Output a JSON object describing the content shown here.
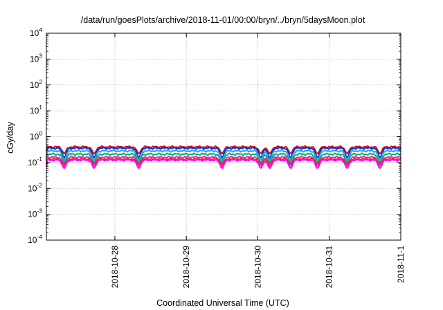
{
  "chart_data": {
    "type": "line",
    "title": "/data/run/goesPlots/archive/2018-11-01/00:00/bryn/../bryn/5daysMoon.plot",
    "xlabel": "Coordinated Universal Time (UTC)",
    "ylabel": "cGy/day",
    "x_range": [
      "2018-10-27T01:00",
      "2018-11-01T00:00"
    ],
    "y_scale": "log",
    "ylim": [
      0.0001,
      10000
    ],
    "grid": true,
    "legend": "none",
    "y_ticks": [
      {
        "value": 0.0001,
        "base": "10",
        "exp": "-4"
      },
      {
        "value": 0.001,
        "base": "10",
        "exp": "-3"
      },
      {
        "value": 0.01,
        "base": "10",
        "exp": "-2"
      },
      {
        "value": 0.1,
        "base": "10",
        "exp": "-1"
      },
      {
        "value": 1,
        "base": "10",
        "exp": "0"
      },
      {
        "value": 10,
        "base": "10",
        "exp": "1"
      },
      {
        "value": 100,
        "base": "10",
        "exp": "2"
      },
      {
        "value": 1000,
        "base": "10",
        "exp": "3"
      },
      {
        "value": 10000,
        "base": "10",
        "exp": "4"
      }
    ],
    "x_ticks": [
      {
        "value": "2018-10-28T00:00",
        "label": "2018-10-28"
      },
      {
        "value": "2018-10-29T00:00",
        "label": "2018-10-29"
      },
      {
        "value": "2018-10-30T00:00",
        "label": "2018-10-30"
      },
      {
        "value": "2018-10-31T00:00",
        "label": "2018-10-31"
      },
      {
        "value": "2018-11-01T00:00",
        "label": "2018-11-1"
      }
    ],
    "dips": [
      "2018-10-27T07:00",
      "2018-10-27T17:00",
      "2018-10-28T08:00",
      "2018-10-29T12:00",
      "2018-10-30T01:00",
      "2018-10-30T04:00",
      "2018-10-30T11:00",
      "2018-10-30T20:00",
      "2018-10-31T06:00",
      "2018-10-31T17:00"
    ],
    "series": [
      {
        "color": "#d01018",
        "base": 0.4,
        "dip": 0.22
      },
      {
        "color": "#1a2fd0",
        "base": 0.36,
        "dip": 0.15
      },
      {
        "color": "#1faee8",
        "base": 0.28,
        "dip": 0.12
      },
      {
        "color": "#12b070",
        "base": 0.21,
        "dip": 0.1
      },
      {
        "color": "#e030c8",
        "base": 0.16,
        "dip": 0.075
      },
      {
        "color": "#e8281c",
        "base": 0.135,
        "dip": 0.09
      },
      {
        "color": "#ff00ff",
        "base": 0.125,
        "dip": 0.06
      }
    ]
  }
}
